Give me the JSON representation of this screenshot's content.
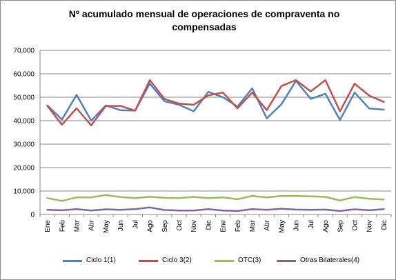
{
  "chart_data": {
    "type": "line",
    "title": "Nº acumulado mensual de operaciones de compraventa no compensadas",
    "xlabel": "",
    "ylabel": "",
    "ylim": [
      0,
      70000
    ],
    "yticks": [
      0,
      10000,
      20000,
      30000,
      40000,
      50000,
      60000,
      70000
    ],
    "ytick_labels": [
      "0",
      "10,000",
      "20,000",
      "30,000",
      "40,000",
      "50,000",
      "60,000",
      "70,000"
    ],
    "grid": true,
    "legend_position": "bottom",
    "categories": [
      "Ene",
      "Feb",
      "Mar",
      "Abr",
      "May",
      "Jun",
      "Jul",
      "Ago",
      "Sep",
      "Oct",
      "Nov",
      "Dic",
      "Ene",
      "Feb",
      "Mar",
      "Abr",
      "May",
      "Jun",
      "Jul",
      "Ago",
      "Sep",
      "Oct",
      "Nov",
      "Dic"
    ],
    "series": [
      {
        "name": "Ciclo 1(1)",
        "color": "#4f81bd",
        "values": [
          46500,
          40500,
          51000,
          40000,
          46500,
          44500,
          44300,
          55800,
          48300,
          46800,
          44000,
          52300,
          50000,
          46000,
          53800,
          41000,
          47000,
          57000,
          49300,
          51500,
          40300,
          52000,
          45200,
          44700
        ]
      },
      {
        "name": "Ciclo 3(2)",
        "color": "#c0504d",
        "values": [
          46300,
          38300,
          45300,
          38000,
          46300,
          46300,
          44300,
          57300,
          49300,
          47300,
          46800,
          50800,
          52000,
          45300,
          52000,
          44500,
          54800,
          57300,
          52500,
          57300,
          44000,
          55800,
          50700,
          48000
        ]
      },
      {
        "name": "OTC(3)",
        "color": "#9bbb59",
        "values": [
          7000,
          5800,
          7300,
          7300,
          8300,
          7400,
          7000,
          7600,
          7100,
          7000,
          7500,
          7000,
          7300,
          6500,
          7900,
          7300,
          7900,
          7900,
          7700,
          7500,
          6000,
          7400,
          6700,
          6400
        ]
      },
      {
        "name": "Otras Bilaterales(4)",
        "color": "#8064a2",
        "values": [
          2000,
          1800,
          2300,
          1700,
          2200,
          2000,
          2300,
          3000,
          1900,
          1700,
          1700,
          2300,
          1700,
          1500,
          2300,
          2000,
          2400,
          2100,
          2000,
          2100,
          1500,
          2200,
          1800,
          2300
        ]
      }
    ]
  }
}
